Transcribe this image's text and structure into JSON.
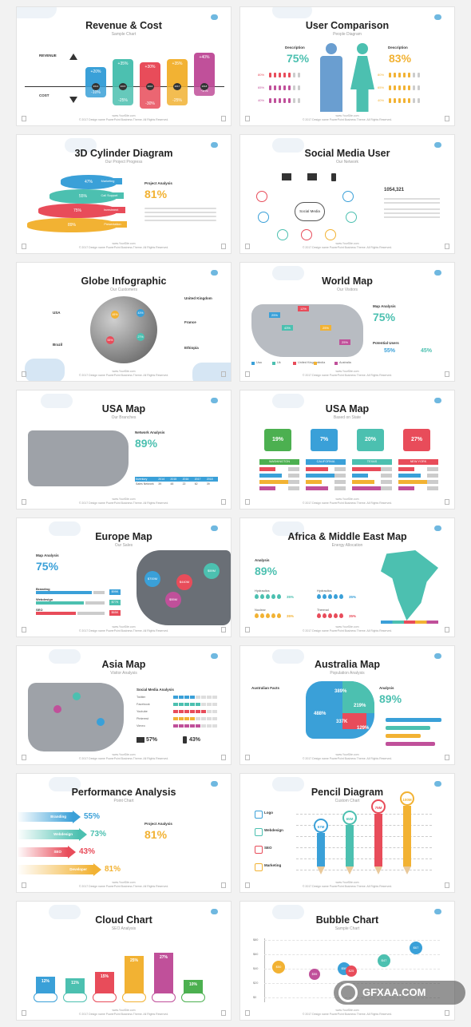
{
  "slides": [
    {
      "title": "Revenue & Cost",
      "subtitle": "Sample Chart",
      "revenue_label": "REVENUE",
      "cost_label": "COST",
      "bars": [
        {
          "top": "+20%",
          "bottom": "-10%",
          "year": "2014",
          "color": "#3aa0d8"
        },
        {
          "top": "+35%",
          "bottom": "-25%",
          "year": "2015",
          "color": "#4cc0b0"
        },
        {
          "top": "+30%",
          "bottom": "-30%",
          "year": "2016",
          "color": "#e84c5a"
        },
        {
          "top": "+35%",
          "bottom": "-25%",
          "year": "2017",
          "color": "#f2b233"
        },
        {
          "top": "+40%",
          "bottom": "-9%",
          "year": "2018",
          "color": "#c0509a"
        }
      ]
    },
    {
      "title": "User Comparison",
      "subtitle": "People Diagram",
      "left_pct": "75%",
      "right_pct": "83%",
      "desc": "Description",
      "rows_left": [
        "80%",
        "65%",
        "40%"
      ],
      "rows_right": [
        "80%",
        "65%",
        "40%"
      ]
    },
    {
      "title": "3D Cylinder Diagram",
      "subtitle": "Our Project Progress",
      "layers": [
        {
          "pct": "47%",
          "label": "Marketing",
          "color": "#3aa0d8"
        },
        {
          "pct": "55%",
          "label": "Call Support",
          "color": "#4cc0b0"
        },
        {
          "pct": "75%",
          "label": "Investment",
          "color": "#e84c5a"
        },
        {
          "pct": "89%",
          "label": "Presentation",
          "color": "#f2b233"
        }
      ],
      "analysis": "Project Analysis",
      "big_pct": "81%"
    },
    {
      "title": "Social Media User",
      "subtitle": "Our Network",
      "center": "Social Media",
      "count": "1054,321"
    },
    {
      "title": "Globe Infographic",
      "subtitle": "Our Customers",
      "places": [
        "USA",
        "Brazil",
        "United Kingdom",
        "France",
        "Ethiopia"
      ],
      "pcts": [
        "45%",
        "53%",
        "43%",
        "35%",
        "27%"
      ]
    },
    {
      "title": "World Map",
      "subtitle": "Our Visitors",
      "analysis": "Map Analysis",
      "big_pct": "75%",
      "potential": "Potential Users",
      "p1": "55%",
      "p2": "45%",
      "map_pcts": [
        "12%",
        "25%",
        "43%",
        "25%",
        "25%"
      ],
      "legend": [
        "Usa",
        "Uk",
        "United Kingdom",
        "India",
        "Australia"
      ]
    },
    {
      "title": "USA Map",
      "subtitle": "Our Branches",
      "analysis": "Network Analysis",
      "big_pct": "89%",
      "table_head": [
        "Inventory",
        "2014",
        "2015",
        "2016",
        "2017",
        "2018"
      ],
      "table_row": [
        "Sales Network",
        "39",
        "48",
        "22",
        "62",
        "39"
      ]
    },
    {
      "title": "USA Map",
      "subtitle": "Based on State",
      "states": [
        {
          "pct": "19%",
          "name": "WASHINGTON",
          "color": "#4cb050"
        },
        {
          "pct": "7%",
          "name": "CALIFORNIA",
          "color": "#3aa0d8"
        },
        {
          "pct": "20%",
          "name": "TEXAS",
          "color": "#4cc0b0"
        },
        {
          "pct": "27%",
          "name": "NEW YORK",
          "color": "#e84c5a"
        }
      ]
    },
    {
      "title": "Europe Map",
      "subtitle": "Our Sales",
      "analysis": "Map Analysis",
      "big_pct": "75%",
      "bars": [
        {
          "label": "Branding",
          "val": "$99K"
        },
        {
          "label": "Webdesign",
          "val": "$77K"
        },
        {
          "label": "SEO",
          "val": "$65K"
        }
      ],
      "bubbles": [
        "$700M",
        "$59M",
        "$55M",
        "$440M"
      ]
    },
    {
      "title": "Africa & Middle East Map",
      "subtitle": "Energy Allocation",
      "analysis": "Analysis",
      "big_pct": "89%",
      "items": [
        {
          "label": "Hydraulics",
          "pct": "35%"
        },
        {
          "label": "Hydraulics",
          "pct": "35%"
        },
        {
          "label": "Nuclear",
          "pct": "35%"
        },
        {
          "label": "Thermal",
          "pct": "35%"
        }
      ]
    },
    {
      "title": "Asia Map",
      "subtitle": "Visitor Analysis",
      "analysis": "Social Media Analysis",
      "social": [
        "Twitter",
        "Facebook",
        "Youtube",
        "Pinterest",
        "Vimeo"
      ],
      "pct_a": "57%",
      "pct_b": "43%"
    },
    {
      "title": "Australia Map",
      "subtitle": "Population Analysis",
      "facts": "Australian Facts",
      "analysis": "Analysis",
      "big_pct": "89%",
      "map_pcts": [
        "389%",
        "488%",
        "219%",
        "337K",
        "129%"
      ]
    },
    {
      "title": "Performance Analysis",
      "subtitle": "Point Chart",
      "arrows": [
        {
          "label": "Branding",
          "pct": "55%",
          "color": "#3aa0d8"
        },
        {
          "label": "Webdesign",
          "pct": "73%",
          "color": "#4cc0b0"
        },
        {
          "label": "SEO",
          "pct": "43%",
          "color": "#e84c5a"
        },
        {
          "label": "Developer",
          "pct": "81%",
          "color": "#f2b233"
        }
      ],
      "analysis": "Project Analysis",
      "big_pct": "81%"
    },
    {
      "title": "Pencil Diagram",
      "subtitle": "Custom Chart",
      "items": [
        "Logo",
        "Webdesign",
        "SEO",
        "Marketing"
      ],
      "pencils": [
        {
          "val": "57M",
          "color": "#3aa0d8"
        },
        {
          "val": "65M",
          "color": "#4cc0b0"
        },
        {
          "val": "75M",
          "color": "#e84c5a"
        },
        {
          "val": "100M",
          "color": "#f2b233"
        }
      ]
    },
    {
      "title": "Cloud Chart",
      "subtitle": "SEO Analysis",
      "cols": [
        {
          "pct": "12%",
          "color": "#3aa0d8"
        },
        {
          "pct": "11%",
          "color": "#4cc0b0"
        },
        {
          "pct": "15%",
          "color": "#e84c5a"
        },
        {
          "pct": "25%",
          "color": "#f2b233"
        },
        {
          "pct": "27%",
          "color": "#c0509a"
        },
        {
          "pct": "10%",
          "color": "#4cb050"
        }
      ]
    },
    {
      "title": "Bubble Chart",
      "subtitle": "Sample Chart",
      "bubbles": [
        {
          "val": "$50",
          "color": "#f2b233"
        },
        {
          "val": "$55",
          "color": "#c0509a"
        },
        {
          "val": "$50",
          "color": "#3aa0d8"
        },
        {
          "val": "$25",
          "color": "#e84c5a"
        },
        {
          "val": "$47",
          "color": "#4cc0b0"
        },
        {
          "val": "$67",
          "color": "#3aa0d8"
        }
      ],
      "ylabels": [
        "$80",
        "$60",
        "$40",
        "$20",
        "$0"
      ]
    }
  ],
  "footer": "www.YourSite.com",
  "copyright": "© 2017 Design name PowerPoint Business Theme. All Rights Reserved.",
  "watermark": "GFXAA.COM"
}
